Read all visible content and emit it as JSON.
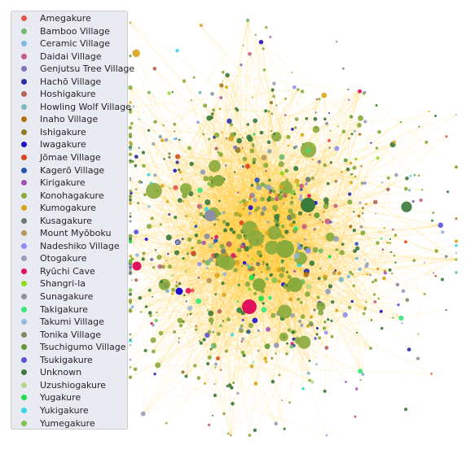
{
  "legend": {
    "items": [
      {
        "label": "Amegakure",
        "color": "#e8554d"
      },
      {
        "label": "Bamboo Village",
        "color": "#6dbb6a"
      },
      {
        "label": "Ceramic Village",
        "color": "#7db8e6"
      },
      {
        "label": "Daidai Village",
        "color": "#c45b86"
      },
      {
        "label": "Genjutsu Tree Village",
        "color": "#7a75b5"
      },
      {
        "label": "Hachō Village",
        "color": "#2b2fa6"
      },
      {
        "label": "Hoshigakure",
        "color": "#b5625a"
      },
      {
        "label": "Howling Wolf Village",
        "color": "#7fb6c4"
      },
      {
        "label": "Inaho Village",
        "color": "#b0720c"
      },
      {
        "label": "Ishigakure",
        "color": "#8d7a24"
      },
      {
        "label": "Iwagakure",
        "color": "#1d12c8"
      },
      {
        "label": "Jōmae Village",
        "color": "#e0431b"
      },
      {
        "label": "Kagerō Village",
        "color": "#2455b0"
      },
      {
        "label": "Kirigakure",
        "color": "#a552b8"
      },
      {
        "label": "Konohagakure",
        "color": "#8aaa3c"
      },
      {
        "label": "Kumogakure",
        "color": "#d9a51b"
      },
      {
        "label": "Kusagakure",
        "color": "#6a7a70"
      },
      {
        "label": "Mount Myōboku",
        "color": "#b79658"
      },
      {
        "label": "Nadeshiko Village",
        "color": "#8f8ef0"
      },
      {
        "label": "Otogakure",
        "color": "#95a0b8"
      },
      {
        "label": "Ryūchi Cave",
        "color": "#e0115f"
      },
      {
        "label": "Shangri-la",
        "color": "#8fdc15"
      },
      {
        "label": "Sunagakure",
        "color": "#8b8ea4"
      },
      {
        "label": "Takigakure",
        "color": "#33e87a"
      },
      {
        "label": "Takumi Village",
        "color": "#95b8d8"
      },
      {
        "label": "Tonika Village",
        "color": "#7b8e62"
      },
      {
        "label": "Tsuchigumo Village",
        "color": "#5d9a34"
      },
      {
        "label": "Tsukigakure",
        "color": "#5a55d6"
      },
      {
        "label": "Unknown",
        "color": "#3a7a3a"
      },
      {
        "label": "Uzushiogakure",
        "color": "#b6d68e"
      },
      {
        "label": "Yugakure",
        "color": "#19e04a"
      },
      {
        "label": "Yukigakure",
        "color": "#36d8e6"
      },
      {
        "label": "Yumegakure",
        "color": "#7fc44a"
      }
    ]
  },
  "colors": {
    "edge": "#ffc72e",
    "legend_bg": "#eaeaf2"
  }
}
